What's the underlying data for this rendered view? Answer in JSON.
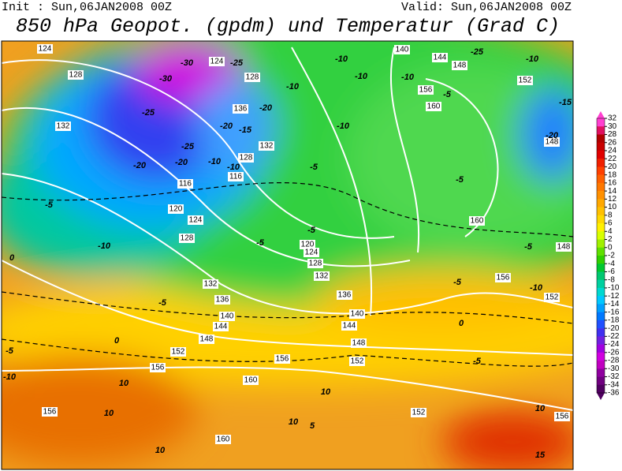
{
  "header": {
    "init": "Init : Sun,06JAN2008 00Z",
    "valid": "Valid: Sun,06JAN2008 00Z",
    "title": "850 hPa Geopot. (gpdm) und Temperatur (Grad C)"
  },
  "colorbar": {
    "ticks": [
      32,
      30,
      28,
      26,
      24,
      22,
      20,
      18,
      16,
      14,
      12,
      10,
      8,
      6,
      4,
      2,
      0,
      -2,
      -4,
      -6,
      -8,
      -10,
      -12,
      -14,
      -16,
      -18,
      -20,
      -22,
      -24,
      -26,
      -28,
      -30,
      -32,
      -34,
      -36
    ],
    "colors": [
      "#ff40d0",
      "#e01060",
      "#b00000",
      "#c80000",
      "#e00000",
      "#f02000",
      "#ff4000",
      "#ff6000",
      "#ff7800",
      "#ff9000",
      "#ffa800",
      "#ffc000",
      "#ffd800",
      "#fff000",
      "#d8ff00",
      "#a0f000",
      "#60e000",
      "#30d000",
      "#00c830",
      "#00c870",
      "#00d0a0",
      "#00d8d0",
      "#00c8ff",
      "#00a0ff",
      "#0078ff",
      "#2050ff",
      "#4030f0",
      "#7020e0",
      "#a000e0",
      "#d000e0",
      "#c000c0",
      "#9000a0",
      "#700080",
      "#500060"
    ]
  },
  "map": {
    "geopotential_labels": [
      124,
      128,
      132,
      124,
      128,
      136,
      132,
      128,
      116,
      116,
      120,
      124,
      128,
      120,
      124,
      128,
      132,
      132,
      136,
      140,
      144,
      148,
      152,
      156,
      160,
      156,
      152,
      148,
      144,
      140,
      136,
      140,
      144,
      148,
      152,
      156,
      160,
      160,
      148,
      148,
      152,
      156,
      152,
      156,
      160,
      156
    ],
    "temperature_labels": [
      -30,
      -25,
      -30,
      -25,
      -20,
      -20,
      -15,
      -25,
      -20,
      -20,
      -10,
      -10,
      -5,
      -10,
      -10,
      -10,
      -10,
      -5,
      -10,
      -15,
      -20,
      -10,
      -25,
      -5,
      -5,
      -5,
      -10,
      -5,
      0,
      -5,
      0,
      -5,
      -10,
      10,
      10,
      10,
      10,
      5,
      10,
      -5,
      10,
      15,
      -5,
      -10,
      -5,
      0
    ]
  }
}
